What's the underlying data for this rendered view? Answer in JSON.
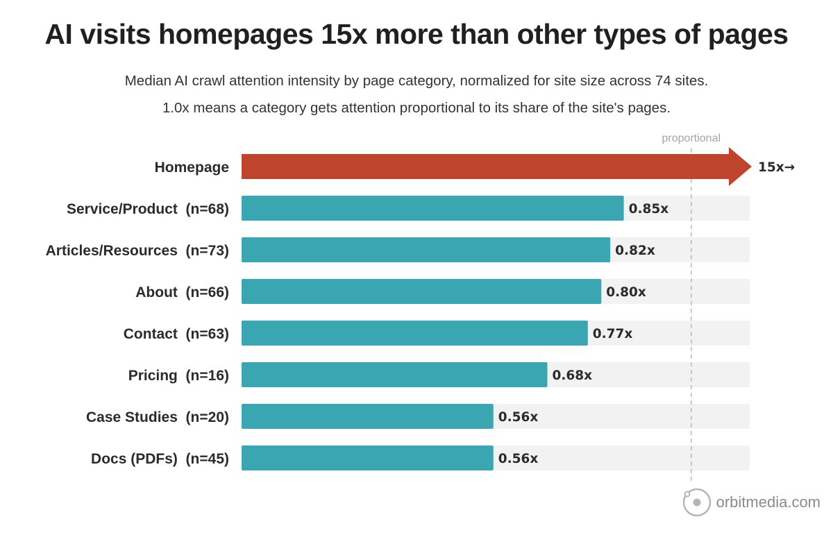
{
  "chart_data": {
    "type": "bar",
    "orientation": "horizontal",
    "title": "AI visits homepages 15x more than other types of pages",
    "subtitle_lines": [
      "Median AI crawl attention intensity by page category, normalized for site size across 74 sites.",
      "1.0x means a category gets attention proportional to its share of the site's pages."
    ],
    "categories": [
      "Homepage",
      "Service/Product  (n=68)",
      "Articles/Resources  (n=73)",
      "About  (n=66)",
      "Contact  (n=63)",
      "Pricing  (n=16)",
      "Case Studies  (n=20)",
      "Docs (PDFs)  (n=45)"
    ],
    "values": [
      15,
      0.85,
      0.82,
      0.8,
      0.77,
      0.68,
      0.56,
      0.56
    ],
    "value_labels": [
      "15x→",
      "0.85x",
      "0.82x",
      "0.80x",
      "0.77x",
      "0.68x",
      "0.56x",
      "0.56x"
    ],
    "xlim": [
      0,
      1.13
    ],
    "reference_line": {
      "value": 1.0,
      "label": "proportional"
    },
    "overflow_categories": [
      "Homepage"
    ],
    "colors": {
      "highlight_bar": "#c0442b",
      "bar": "#3aa6b2",
      "track": "#f2f2f2",
      "reference_line": "#b8b8b8"
    },
    "grid": false,
    "legend": "none"
  },
  "watermark": {
    "text": "orbitmedia.com",
    "icon": "orbit-logo-icon"
  }
}
